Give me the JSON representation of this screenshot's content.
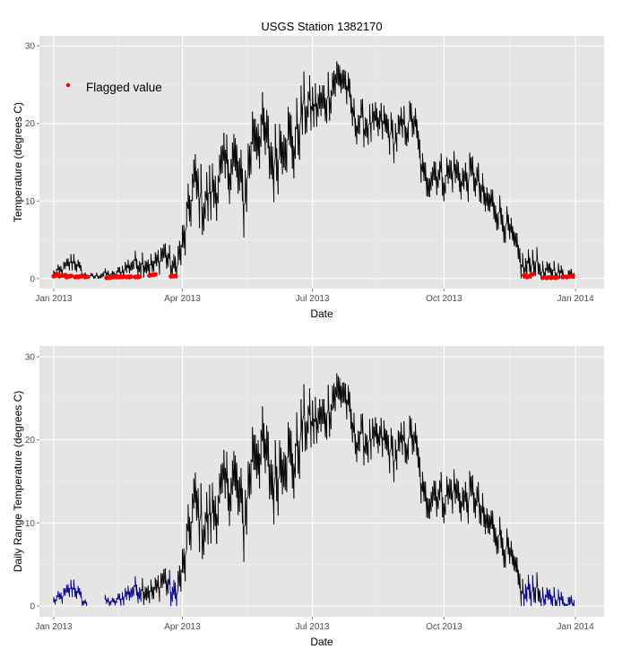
{
  "chart_data": [
    {
      "type": "line",
      "title": "USGS Station 1382170",
      "xlabel": "Date",
      "ylabel": "Temperature (degrees C)",
      "x_ticks": [
        "Jan 2013",
        "Apr 2013",
        "Jul 2013",
        "Oct 2013",
        "Jan 2014"
      ],
      "y_ticks": [
        "0",
        "10",
        "20",
        "30"
      ],
      "xlim": [
        "2012-12-22",
        "2014-01-21"
      ],
      "ylim": [
        -1.3,
        31.3
      ],
      "grid": true,
      "legend": {
        "position": "top-left",
        "entries": [
          {
            "label": "Flagged value",
            "color": "#ff0000"
          }
        ]
      },
      "colors": {
        "line": "#000000",
        "flagged": "#ff0000",
        "panel": "#e5e5e5",
        "grid": "#ffffff"
      },
      "series": [
        {
          "dates": [
            "2013-01-01",
            "2013-01-08",
            "2013-01-15",
            "2013-01-22",
            "2013-01-29",
            "2013-02-05",
            "2013-02-12",
            "2013-02-19",
            "2013-02-26",
            "2013-03-05",
            "2013-03-12",
            "2013-03-19",
            "2013-03-26",
            "2013-04-02",
            "2013-04-09",
            "2013-04-16",
            "2013-04-23",
            "2013-04-30",
            "2013-05-07",
            "2013-05-14",
            "2013-05-21",
            "2013-05-28",
            "2013-06-04",
            "2013-06-11",
            "2013-06-18",
            "2013-06-25",
            "2013-07-02",
            "2013-07-09",
            "2013-07-16",
            "2013-07-23",
            "2013-07-30",
            "2013-08-06",
            "2013-08-13",
            "2013-08-20",
            "2013-08-27",
            "2013-09-03",
            "2013-09-10",
            "2013-09-17",
            "2013-09-24",
            "2013-10-01",
            "2013-10-08",
            "2013-10-15",
            "2013-10-22",
            "2013-10-29",
            "2013-11-05",
            "2013-11-12",
            "2013-11-19",
            "2013-11-26",
            "2013-12-03",
            "2013-12-10",
            "2013-12-17",
            "2013-12-24",
            "2013-12-31"
          ],
          "values": [
            0.6,
            1.2,
            2.4,
            0.4,
            0.2,
            0.6,
            0.4,
            1.2,
            2.0,
            2.2,
            1.5,
            3.5,
            1.0,
            4.5,
            12.5,
            9.5,
            11.5,
            14.0,
            15.5,
            10.0,
            19.5,
            18.5,
            14.5,
            19.0,
            17.0,
            22.0,
            22.0,
            22.5,
            25.5,
            26.0,
            20.5,
            20.0,
            19.5,
            20.0,
            18.0,
            19.5,
            20.5,
            12.5,
            14.0,
            13.0,
            14.0,
            12.5,
            13.5,
            10.0,
            9.5,
            7.5,
            4.5,
            1.0,
            2.5,
            0.4,
            1.2,
            0.3,
            0.6
          ],
          "noise_amplitude": [
            0.5,
            0.7,
            1.0,
            0.4,
            0.3,
            0.5,
            0.4,
            0.8,
            1.0,
            1.3,
            1.2,
            1.5,
            1.5,
            2.5,
            3.0,
            3.0,
            3.0,
            3.0,
            3.5,
            3.5,
            3.5,
            3.5,
            3.5,
            3.5,
            3.5,
            3.0,
            2.5,
            2.5,
            2.5,
            2.0,
            2.0,
            2.0,
            2.0,
            2.0,
            2.0,
            2.0,
            2.0,
            2.0,
            2.0,
            2.0,
            2.0,
            2.0,
            2.0,
            2.0,
            1.8,
            1.8,
            1.5,
            1.5,
            1.5,
            1.0,
            1.0,
            0.8,
            0.8
          ]
        }
      ],
      "flagged_ranges": [
        [
          "2013-01-01",
          "2013-01-24"
        ],
        [
          "2013-02-06",
          "2013-03-03"
        ],
        [
          "2013-03-22",
          "2013-03-28"
        ],
        [
          "2013-11-26",
          "2013-12-03"
        ],
        [
          "2013-12-08",
          "2013-12-31"
        ]
      ],
      "flagged_points": [
        {
          "date": "2013-01-01",
          "value": 0.3
        },
        {
          "date": "2013-01-03",
          "value": 0.5
        },
        {
          "date": "2013-01-05",
          "value": 0.3
        },
        {
          "date": "2013-01-08",
          "value": 0.4
        },
        {
          "date": "2013-01-10",
          "value": 0.2
        },
        {
          "date": "2013-01-12",
          "value": 0.3
        },
        {
          "date": "2013-01-16",
          "value": 0.2
        },
        {
          "date": "2013-01-18",
          "value": 0.2
        },
        {
          "date": "2013-01-20",
          "value": 0.3
        },
        {
          "date": "2013-01-23",
          "value": 0.2
        },
        {
          "date": "2013-02-07",
          "value": 0.1
        },
        {
          "date": "2013-02-09",
          "value": 0.1
        },
        {
          "date": "2013-02-12",
          "value": 0.2
        },
        {
          "date": "2013-02-14",
          "value": 0.2
        },
        {
          "date": "2013-02-16",
          "value": 0.2
        },
        {
          "date": "2013-02-18",
          "value": 0.2
        },
        {
          "date": "2013-02-21",
          "value": 0.2
        },
        {
          "date": "2013-02-23",
          "value": 0.2
        },
        {
          "date": "2013-02-27",
          "value": 0.2
        },
        {
          "date": "2013-03-01",
          "value": 0.2
        },
        {
          "date": "2013-03-09",
          "value": 0.4
        },
        {
          "date": "2013-03-12",
          "value": 0.5
        },
        {
          "date": "2013-03-24",
          "value": 0.3
        },
        {
          "date": "2013-03-26",
          "value": 0.3
        },
        {
          "date": "2013-11-26",
          "value": 0.4
        },
        {
          "date": "2013-11-28",
          "value": 0.2
        },
        {
          "date": "2013-12-01",
          "value": 0.5
        },
        {
          "date": "2013-12-09",
          "value": 0.1
        },
        {
          "date": "2013-12-12",
          "value": 0.1
        },
        {
          "date": "2013-12-15",
          "value": 0.1
        },
        {
          "date": "2013-12-18",
          "value": 0.1
        },
        {
          "date": "2013-12-23",
          "value": 0.2
        },
        {
          "date": "2013-12-26",
          "value": 0.2
        },
        {
          "date": "2013-12-29",
          "value": 0.3
        }
      ]
    },
    {
      "type": "line",
      "title": "",
      "xlabel": "Date",
      "ylabel": "Daily Range Temperature (degrees C)",
      "x_ticks": [
        "Jan 2013",
        "Apr 2013",
        "Jul 2013",
        "Oct 2013",
        "Jan 2014"
      ],
      "y_ticks": [
        "0",
        "10",
        "20",
        "30"
      ],
      "xlim": [
        "2012-12-22",
        "2014-01-21"
      ],
      "ylim": [
        -1.3,
        31.3
      ],
      "grid": true,
      "colors": {
        "line": "#000000",
        "low_segments": "#00008b",
        "panel": "#e5e5e5",
        "grid": "#ffffff"
      },
      "series_ref": "same daily series as chart 1",
      "low_value_ranges": [
        [
          "2013-01-01",
          "2013-01-24"
        ],
        [
          "2013-02-06",
          "2013-03-03"
        ],
        [
          "2013-03-22",
          "2013-03-28"
        ],
        [
          "2013-11-26",
          "2013-12-03"
        ],
        [
          "2013-12-08",
          "2013-12-31"
        ]
      ],
      "gaps": [
        [
          "2013-01-25",
          "2013-02-05"
        ]
      ]
    }
  ]
}
